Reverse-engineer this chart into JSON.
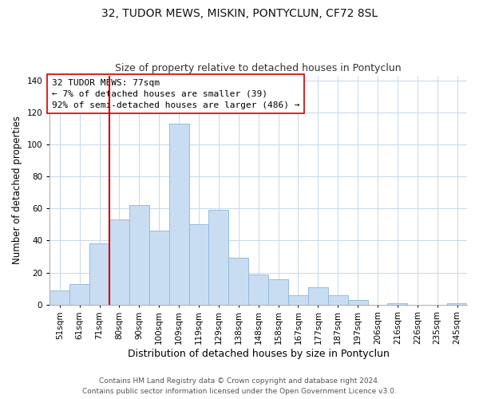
{
  "title": "32, TUDOR MEWS, MISKIN, PONTYCLUN, CF72 8SL",
  "subtitle": "Size of property relative to detached houses in Pontyclun",
  "xlabel": "Distribution of detached houses by size in Pontyclun",
  "ylabel": "Number of detached properties",
  "bar_labels": [
    "51sqm",
    "61sqm",
    "71sqm",
    "80sqm",
    "90sqm",
    "100sqm",
    "109sqm",
    "119sqm",
    "129sqm",
    "138sqm",
    "148sqm",
    "158sqm",
    "167sqm",
    "177sqm",
    "187sqm",
    "197sqm",
    "206sqm",
    "216sqm",
    "226sqm",
    "235sqm",
    "245sqm"
  ],
  "bar_values": [
    9,
    13,
    38,
    53,
    62,
    46,
    113,
    50,
    59,
    29,
    19,
    16,
    6,
    11,
    6,
    3,
    0,
    1,
    0,
    0,
    1
  ],
  "bar_color": "#c9ddf2",
  "bar_edge_color": "#8ab4d8",
  "property_line_color": "#cc0000",
  "annotation_text": "32 TUDOR MEWS: 77sqm\n← 7% of detached houses are smaller (39)\n92% of semi-detached houses are larger (486) →",
  "annotation_box_color": "#ffffff",
  "annotation_box_edge_color": "#cc0000",
  "ylim": [
    0,
    143
  ],
  "footer_line1": "Contains HM Land Registry data © Crown copyright and database right 2024.",
  "footer_line2": "Contains public sector information licensed under the Open Government Licence v3.0.",
  "title_fontsize": 10,
  "subtitle_fontsize": 9,
  "ylabel_fontsize": 8.5,
  "xlabel_fontsize": 9,
  "tick_fontsize": 7.5,
  "annotation_fontsize": 8,
  "footer_fontsize": 6.5
}
